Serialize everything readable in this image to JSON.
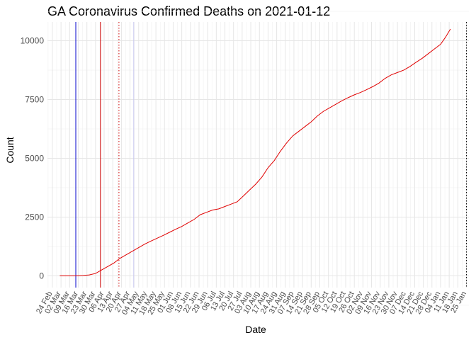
{
  "chart_data": {
    "type": "line",
    "title": "GA Coronavirus Confirmed Deaths on 2021-01-12",
    "xlabel": "Date",
    "ylabel": "Count",
    "xlim": [
      "2020-02-20",
      "2021-01-27"
    ],
    "ylim": [
      -500,
      10800
    ],
    "grid": true,
    "yticks": [
      0,
      2500,
      5000,
      7500,
      10000
    ],
    "ytick_labels": [
      "0",
      "2500",
      "5000",
      "7500",
      "10000"
    ],
    "xtick_dates": [
      "2020-02-24",
      "2020-03-02",
      "2020-03-09",
      "2020-03-16",
      "2020-03-23",
      "2020-03-30",
      "2020-04-06",
      "2020-04-13",
      "2020-04-20",
      "2020-04-27",
      "2020-05-04",
      "2020-05-11",
      "2020-05-18",
      "2020-05-25",
      "2020-06-01",
      "2020-06-08",
      "2020-06-15",
      "2020-06-22",
      "2020-06-29",
      "2020-07-06",
      "2020-07-13",
      "2020-07-20",
      "2020-07-27",
      "2020-08-03",
      "2020-08-10",
      "2020-08-17",
      "2020-08-24",
      "2020-08-31",
      "2020-09-07",
      "2020-09-14",
      "2020-09-21",
      "2020-09-28",
      "2020-10-05",
      "2020-10-12",
      "2020-10-19",
      "2020-10-26",
      "2020-11-02",
      "2020-11-09",
      "2020-11-16",
      "2020-11-23",
      "2020-11-30",
      "2020-12-07",
      "2020-12-14",
      "2020-12-21",
      "2020-12-28",
      "2021-01-04",
      "2021-01-11",
      "2021-01-18",
      "2021-01-25"
    ],
    "xtick_labels": [
      "24 Feb",
      "02 Mar",
      "09 Mar",
      "16 Mar",
      "23 Mar",
      "30 Mar",
      "06 Apr",
      "13 Apr",
      "20 Apr",
      "27 Apr",
      "04 May",
      "11 May",
      "18 May",
      "25 May",
      "01 Jun",
      "08 Jun",
      "15 Jun",
      "22 Jun",
      "29 Jun",
      "06 Jul",
      "13 Jul",
      "20 Jul",
      "27 Jul",
      "03 Aug",
      "10 Aug",
      "17 Aug",
      "24 Aug",
      "31 Aug",
      "07 Sep",
      "14 Sep",
      "21 Sep",
      "28 Sep",
      "05 Oct",
      "12 Oct",
      "19 Oct",
      "26 Oct",
      "02 Nov",
      "09 Nov",
      "16 Nov",
      "23 Nov",
      "30 Nov",
      "07 Dec",
      "14 Dec",
      "21 Dec",
      "28 Dec",
      "04 Jan",
      "11 Jan",
      "18 Jan",
      "25 Jan"
    ],
    "series": [
      {
        "color": "#e00000",
        "points": [
          [
            "2020-03-01",
            0
          ],
          [
            "2020-03-10",
            0
          ],
          [
            "2020-03-15",
            2
          ],
          [
            "2020-03-20",
            15
          ],
          [
            "2020-03-25",
            40
          ],
          [
            "2020-03-30",
            100
          ],
          [
            "2020-04-04",
            250
          ],
          [
            "2020-04-09",
            400
          ],
          [
            "2020-04-14",
            550
          ],
          [
            "2020-04-19",
            750
          ],
          [
            "2020-04-24",
            900
          ],
          [
            "2020-04-29",
            1050
          ],
          [
            "2020-05-04",
            1200
          ],
          [
            "2020-05-09",
            1350
          ],
          [
            "2020-05-14",
            1480
          ],
          [
            "2020-05-19",
            1600
          ],
          [
            "2020-05-24",
            1720
          ],
          [
            "2020-05-29",
            1850
          ],
          [
            "2020-06-03",
            1980
          ],
          [
            "2020-06-08",
            2100
          ],
          [
            "2020-06-13",
            2250
          ],
          [
            "2020-06-18",
            2400
          ],
          [
            "2020-06-23",
            2600
          ],
          [
            "2020-06-28",
            2700
          ],
          [
            "2020-07-03",
            2800
          ],
          [
            "2020-07-08",
            2850
          ],
          [
            "2020-07-13",
            2950
          ],
          [
            "2020-07-18",
            3050
          ],
          [
            "2020-07-23",
            3150
          ],
          [
            "2020-07-28",
            3400
          ],
          [
            "2020-08-02",
            3650
          ],
          [
            "2020-08-07",
            3900
          ],
          [
            "2020-08-12",
            4200
          ],
          [
            "2020-08-17",
            4600
          ],
          [
            "2020-08-22",
            4900
          ],
          [
            "2020-08-27",
            5300
          ],
          [
            "2020-09-01",
            5650
          ],
          [
            "2020-09-06",
            5950
          ],
          [
            "2020-09-11",
            6150
          ],
          [
            "2020-09-16",
            6350
          ],
          [
            "2020-09-21",
            6550
          ],
          [
            "2020-09-26",
            6800
          ],
          [
            "2020-10-01",
            7000
          ],
          [
            "2020-10-06",
            7150
          ],
          [
            "2020-10-11",
            7300
          ],
          [
            "2020-10-16",
            7450
          ],
          [
            "2020-10-21",
            7580
          ],
          [
            "2020-10-26",
            7700
          ],
          [
            "2020-10-31",
            7800
          ],
          [
            "2020-11-05",
            7920
          ],
          [
            "2020-11-10",
            8050
          ],
          [
            "2020-11-15",
            8200
          ],
          [
            "2020-11-20",
            8400
          ],
          [
            "2020-11-25",
            8550
          ],
          [
            "2020-11-30",
            8650
          ],
          [
            "2020-12-05",
            8750
          ],
          [
            "2020-12-10",
            8900
          ],
          [
            "2020-12-15",
            9080
          ],
          [
            "2020-12-20",
            9250
          ],
          [
            "2020-12-25",
            9450
          ],
          [
            "2020-12-30",
            9650
          ],
          [
            "2021-01-04",
            9850
          ],
          [
            "2021-01-08",
            10150
          ],
          [
            "2021-01-12",
            10500
          ]
        ]
      }
    ],
    "vlines": [
      {
        "date": "2020-03-14",
        "color": "#0000cc",
        "style": "solid"
      },
      {
        "date": "2020-04-03",
        "color": "#cc0000",
        "style": "solid"
      },
      {
        "date": "2020-04-18",
        "color": "#cc0000",
        "style": "dotted"
      },
      {
        "date": "2020-04-30",
        "color": "#c8c8f0",
        "style": "solid"
      },
      {
        "date": "2021-01-25",
        "color": "#000000",
        "style": "dotted"
      }
    ]
  }
}
